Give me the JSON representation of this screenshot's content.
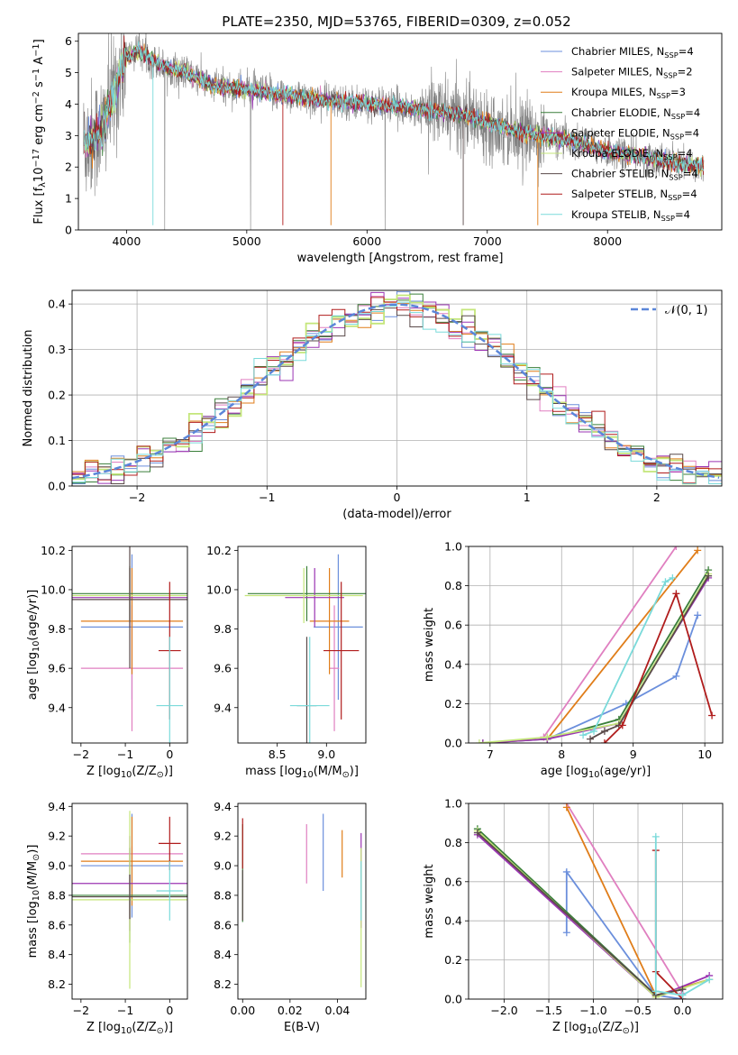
{
  "title": "PLATE=2350, MJD=53765, FIBERID=0309, z=0.052",
  "colors": {
    "observed": "#808080",
    "models": [
      "#6b8fdc",
      "#e07fc0",
      "#e07d19",
      "#3a7f3a",
      "#9b34b3",
      "#c4e67a",
      "#5a4a4a",
      "#b01c1c",
      "#7adada"
    ],
    "gaussian": "#5b86d9"
  },
  "chart_data": [
    {
      "type": "line",
      "id": "spectrum",
      "xlabel": "wavelength [Angstrom, rest frame]",
      "ylabel": "Flux [f$_\\lambda$10$^{-17}$ erg cm$^{-2}$ s$^{-1}$ A$^{-1}$]",
      "ylabel_parts": [
        "Flux [f",
        "λ",
        "10",
        "−17",
        " erg cm",
        "−2",
        " s",
        "−1",
        " A",
        "−1",
        "]"
      ],
      "xlim": [
        3600,
        8950
      ],
      "ylim": [
        0,
        6.25
      ],
      "xticks": [
        4000,
        5000,
        6000,
        7000,
        8000
      ],
      "yticks": [
        0,
        1,
        2,
        3,
        4,
        5,
        6
      ],
      "legend": "top-right",
      "continuum_knots": {
        "x": [
          3650,
          3800,
          3950,
          4000,
          4100,
          4300,
          4500,
          4700,
          5000,
          5300,
          5600,
          5900,
          6200,
          6500,
          6800,
          7100,
          7400,
          7700,
          8000,
          8300,
          8600,
          8800
        ],
        "y": [
          2.7,
          3.2,
          5.0,
          5.5,
          5.7,
          5.2,
          5.0,
          4.6,
          4.45,
          4.3,
          4.15,
          4.05,
          3.95,
          3.8,
          3.65,
          3.3,
          3.0,
          2.85,
          2.5,
          2.3,
          2.1,
          2.0
        ]
      },
      "series": [
        {
          "label": "Chabrier MILES, N",
          "sub": "SSP",
          "suffix": "=4"
        },
        {
          "label": "Salpeter MILES, N",
          "sub": "SSP",
          "suffix": "=2"
        },
        {
          "label": "Kroupa MILES, N",
          "sub": "SSP",
          "suffix": "=3"
        },
        {
          "label": "Chabrier ELODIE, N",
          "sub": "SSP",
          "suffix": "=4"
        },
        {
          "label": "Salpeter ELODIE, N",
          "sub": "SSP",
          "suffix": "=4"
        },
        {
          "label": "Kroupa ELODIE, N",
          "sub": "SSP",
          "suffix": "=4"
        },
        {
          "label": "Chabrier STELIB, N",
          "sub": "SSP",
          "suffix": "=4"
        },
        {
          "label": "Salpeter STELIB, N",
          "sub": "SSP",
          "suffix": "=4"
        },
        {
          "label": "Kroupa STELIB, N",
          "sub": "SSP",
          "suffix": "=4"
        }
      ]
    },
    {
      "type": "histogram",
      "id": "residuals",
      "xlabel": "(data-model)/error",
      "ylabel": "Normed distribution",
      "xlim": [
        -2.5,
        2.5
      ],
      "ylim": [
        0,
        0.43
      ],
      "xticks": [
        -2,
        -1,
        0,
        1,
        2
      ],
      "yticks": [
        0.0,
        0.1,
        0.2,
        0.3,
        0.4
      ],
      "grid": true,
      "legend": "top-right",
      "gaussian_label": "𝒩(0, 1)",
      "bin_width": 0.1
    },
    {
      "type": "errorbar",
      "id": "age-vs-Z",
      "xlabel": "Z [log$_{10}$(Z/Z$_\\odot$)]",
      "ylabel": "age  [log$_{10}$(age/yr)]",
      "xlim": [
        -2.2,
        0.4
      ],
      "ylim": [
        9.22,
        10.22
      ],
      "xticks": [
        -2,
        -1,
        0
      ],
      "yticks": [
        9.4,
        9.6,
        9.8,
        10.0,
        10.2
      ],
      "points": [
        {
          "x": -0.85,
          "xerr": 1.15,
          "y": 9.81,
          "yerr": 0.37
        },
        {
          "x": -0.85,
          "xerr": 1.15,
          "y": 9.6,
          "yerr": 0.32
        },
        {
          "x": -0.85,
          "xerr": 1.15,
          "y": 9.84,
          "yerr": 0.27
        },
        {
          "x": -0.9,
          "xerr": 1.3,
          "y": 9.98,
          "yerr": 0.14
        },
        {
          "x": -0.9,
          "xerr": 1.3,
          "y": 9.96,
          "yerr": 0.15
        },
        {
          "x": -0.9,
          "xerr": 1.3,
          "y": 9.97,
          "yerr": 0.14
        },
        {
          "x": -0.9,
          "xerr": 1.3,
          "y": 9.95,
          "yerr": 0.35
        },
        {
          "x": 0.0,
          "xerr": 0.25,
          "y": 9.69,
          "yerr": 0.35
        },
        {
          "x": 0.0,
          "xerr": 0.3,
          "y": 9.41,
          "yerr": 0.35
        }
      ]
    },
    {
      "type": "errorbar",
      "id": "age-vs-mass",
      "xlabel": "mass [log$_{10}$(M/M$_\\odot$)]",
      "ylabel": "",
      "xlim": [
        8.1,
        9.4
      ],
      "ylim": [
        9.22,
        10.22
      ],
      "xticks": [
        8.5,
        9.0
      ],
      "yticks": [
        9.4,
        9.6,
        9.8,
        10.0,
        10.2
      ],
      "points": [
        {
          "x": 9.12,
          "xerr": 0.25,
          "y": 9.81,
          "yerr": 0.37
        },
        {
          "x": 9.08,
          "xerr": 0.05,
          "y": 9.6,
          "yerr": 0.32
        },
        {
          "x": 9.03,
          "xerr": 0.2,
          "y": 9.84,
          "yerr": 0.27
        },
        {
          "x": 8.8,
          "xerr": 0.6,
          "y": 9.98,
          "yerr": 0.14
        },
        {
          "x": 8.88,
          "xerr": 0.3,
          "y": 9.96,
          "yerr": 0.15
        },
        {
          "x": 8.77,
          "xerr": 0.6,
          "y": 9.97,
          "yerr": 0.14
        },
        {
          "x": 8.8,
          "xerr": 0.1,
          "y": 9.41,
          "yerr": 0.35
        },
        {
          "x": 9.15,
          "xerr": 0.18,
          "y": 9.69,
          "yerr": 0.35
        },
        {
          "x": 8.83,
          "xerr": 0.2,
          "y": 9.41,
          "yerr": 0.35
        }
      ]
    },
    {
      "type": "line",
      "id": "massweight-vs-age",
      "xlabel": "age  [log$_{10}$(age/yr)]",
      "ylabel": "mass weight",
      "xlim": [
        6.7,
        10.25
      ],
      "ylim": [
        0,
        1.0
      ],
      "xticks": [
        7,
        8,
        9,
        10
      ],
      "yticks": [
        0.0,
        0.2,
        0.4,
        0.6,
        0.8,
        1.0
      ],
      "grid": true,
      "series": [
        {
          "x": [
            7.8,
            8.9,
            9.6,
            9.9
          ],
          "y": [
            0.02,
            0.2,
            0.34,
            0.65
          ]
        },
        {
          "x": [
            7.75,
            9.6
          ],
          "y": [
            0.03,
            1.0
          ]
        },
        {
          "x": [
            7.8,
            9.9
          ],
          "y": [
            0.02,
            0.98
          ]
        },
        {
          "x": [
            6.9,
            7.8,
            8.8,
            10.05
          ],
          "y": [
            0.0,
            0.02,
            0.12,
            0.88
          ]
        },
        {
          "x": [
            6.9,
            7.8,
            8.8,
            10.05
          ],
          "y": [
            0.0,
            0.02,
            0.1,
            0.84
          ]
        },
        {
          "x": [
            6.85,
            7.8,
            8.8,
            10.05
          ],
          "y": [
            0.0,
            0.03,
            0.1,
            0.86
          ]
        },
        {
          "x": [
            8.4,
            8.6,
            8.8,
            10.05
          ],
          "y": [
            0.02,
            0.06,
            0.09,
            0.85
          ]
        },
        {
          "x": [
            8.6,
            8.85,
            9.6,
            10.1
          ],
          "y": [
            0.0,
            0.09,
            0.76,
            0.14
          ]
        },
        {
          "x": [
            8.3,
            8.45,
            9.45,
            9.55
          ],
          "y": [
            0.04,
            0.06,
            0.82,
            0.84
          ]
        }
      ]
    },
    {
      "type": "errorbar",
      "id": "mass-vs-Z",
      "xlabel": "Z [log$_{10}$(Z/Z$_\\odot$)]",
      "ylabel": "mass [log$_{10}$(M/M$_\\odot$)]",
      "xlim": [
        -2.2,
        0.4
      ],
      "ylim": [
        8.1,
        9.42
      ],
      "xticks": [
        -2,
        -1,
        0
      ],
      "yticks": [
        8.2,
        8.4,
        8.6,
        8.8,
        9.0,
        9.2,
        9.4
      ],
      "points": [
        {
          "x": -0.85,
          "xerr": 1.15,
          "y": 9.0,
          "yerr": 0.35
        },
        {
          "x": -0.85,
          "xerr": 1.15,
          "y": 9.08,
          "yerr": 0.05
        },
        {
          "x": -0.85,
          "xerr": 1.15,
          "y": 9.03,
          "yerr": 0.3
        },
        {
          "x": -0.9,
          "xerr": 1.3,
          "y": 8.8,
          "yerr": 0.32
        },
        {
          "x": -0.9,
          "xerr": 1.3,
          "y": 8.88,
          "yerr": 0.32
        },
        {
          "x": -0.9,
          "xerr": 1.3,
          "y": 8.77,
          "yerr": 0.6
        },
        {
          "x": -0.9,
          "xerr": 1.3,
          "y": 8.79,
          "yerr": 0.15
        },
        {
          "x": 0.0,
          "xerr": 0.25,
          "y": 9.15,
          "yerr": 0.18
        },
        {
          "x": 0.0,
          "xerr": 0.3,
          "y": 8.83,
          "yerr": 0.2
        }
      ]
    },
    {
      "type": "errorbar",
      "id": "mass-vs-EBV",
      "xlabel": "E(B-V)",
      "ylabel": "",
      "xlim": [
        -0.002,
        0.052
      ],
      "ylim": [
        8.1,
        9.42
      ],
      "xticks": [
        0.0,
        0.02,
        0.04
      ],
      "yticks": [
        8.2,
        8.4,
        8.6,
        8.8,
        9.0,
        9.2,
        9.4
      ],
      "points": [
        {
          "x": 0.034,
          "y": 9.09,
          "yerr": 0.26
        },
        {
          "x": 0.027,
          "y": 9.08,
          "yerr": 0.2
        },
        {
          "x": 0.042,
          "y": 9.08,
          "yerr": 0.16
        },
        {
          "x": 0.0,
          "y": 8.95,
          "yerr": 0.33
        },
        {
          "x": 0.05,
          "y": 8.9,
          "yerr": 0.32
        },
        {
          "x": 0.05,
          "y": 8.65,
          "yerr": 0.47
        },
        {
          "x": 0.0,
          "y": 8.8,
          "yerr": 0.17
        },
        {
          "x": 0.0,
          "y": 9.15,
          "yerr": 0.17
        },
        {
          "x": 0.05,
          "y": 8.83,
          "yerr": 0.2
        }
      ]
    },
    {
      "type": "line",
      "id": "massweight-vs-Z",
      "xlabel": "Z [log$_{10}$(Z/Z$_\\odot$)]",
      "ylabel": "mass weight",
      "xlim": [
        -2.4,
        0.45
      ],
      "ylim": [
        0,
        1.0
      ],
      "xticks": [
        -2.0,
        -1.5,
        -1.0,
        -0.5,
        0.0
      ],
      "yticks": [
        0.0,
        0.2,
        0.4,
        0.6,
        0.8,
        1.0
      ],
      "grid": true,
      "series": [
        {
          "x": [
            -1.3,
            -1.3,
            -0.3,
            0.0
          ],
          "y": [
            0.34,
            0.65,
            0.02,
            0.0
          ]
        },
        {
          "x": [
            -1.3,
            0.0
          ],
          "y": [
            1.0,
            0.03
          ]
        },
        {
          "x": [
            -1.3,
            -0.3,
            0.3
          ],
          "y": [
            0.98,
            0.02,
            0.1
          ]
        },
        {
          "x": [
            -2.3,
            -0.3,
            0.0
          ],
          "y": [
            0.87,
            0.02,
            0.05
          ]
        },
        {
          "x": [
            -2.3,
            -0.3,
            0.3
          ],
          "y": [
            0.84,
            0.01,
            0.12
          ]
        },
        {
          "x": [
            -2.3,
            -0.3,
            0.3
          ],
          "y": [
            0.86,
            0.01,
            0.1
          ]
        },
        {
          "x": [
            -2.3,
            -0.3,
            0.0
          ],
          "y": [
            0.85,
            0.02,
            0.05
          ]
        },
        {
          "x": [
            -0.3,
            -0.3,
            0.0
          ],
          "y": [
            0.76,
            0.14,
            0.0
          ]
        },
        {
          "x": [
            -0.3,
            -0.3,
            0.0,
            0.3
          ],
          "y": [
            0.83,
            0.04,
            0.02,
            0.1
          ]
        }
      ]
    }
  ]
}
